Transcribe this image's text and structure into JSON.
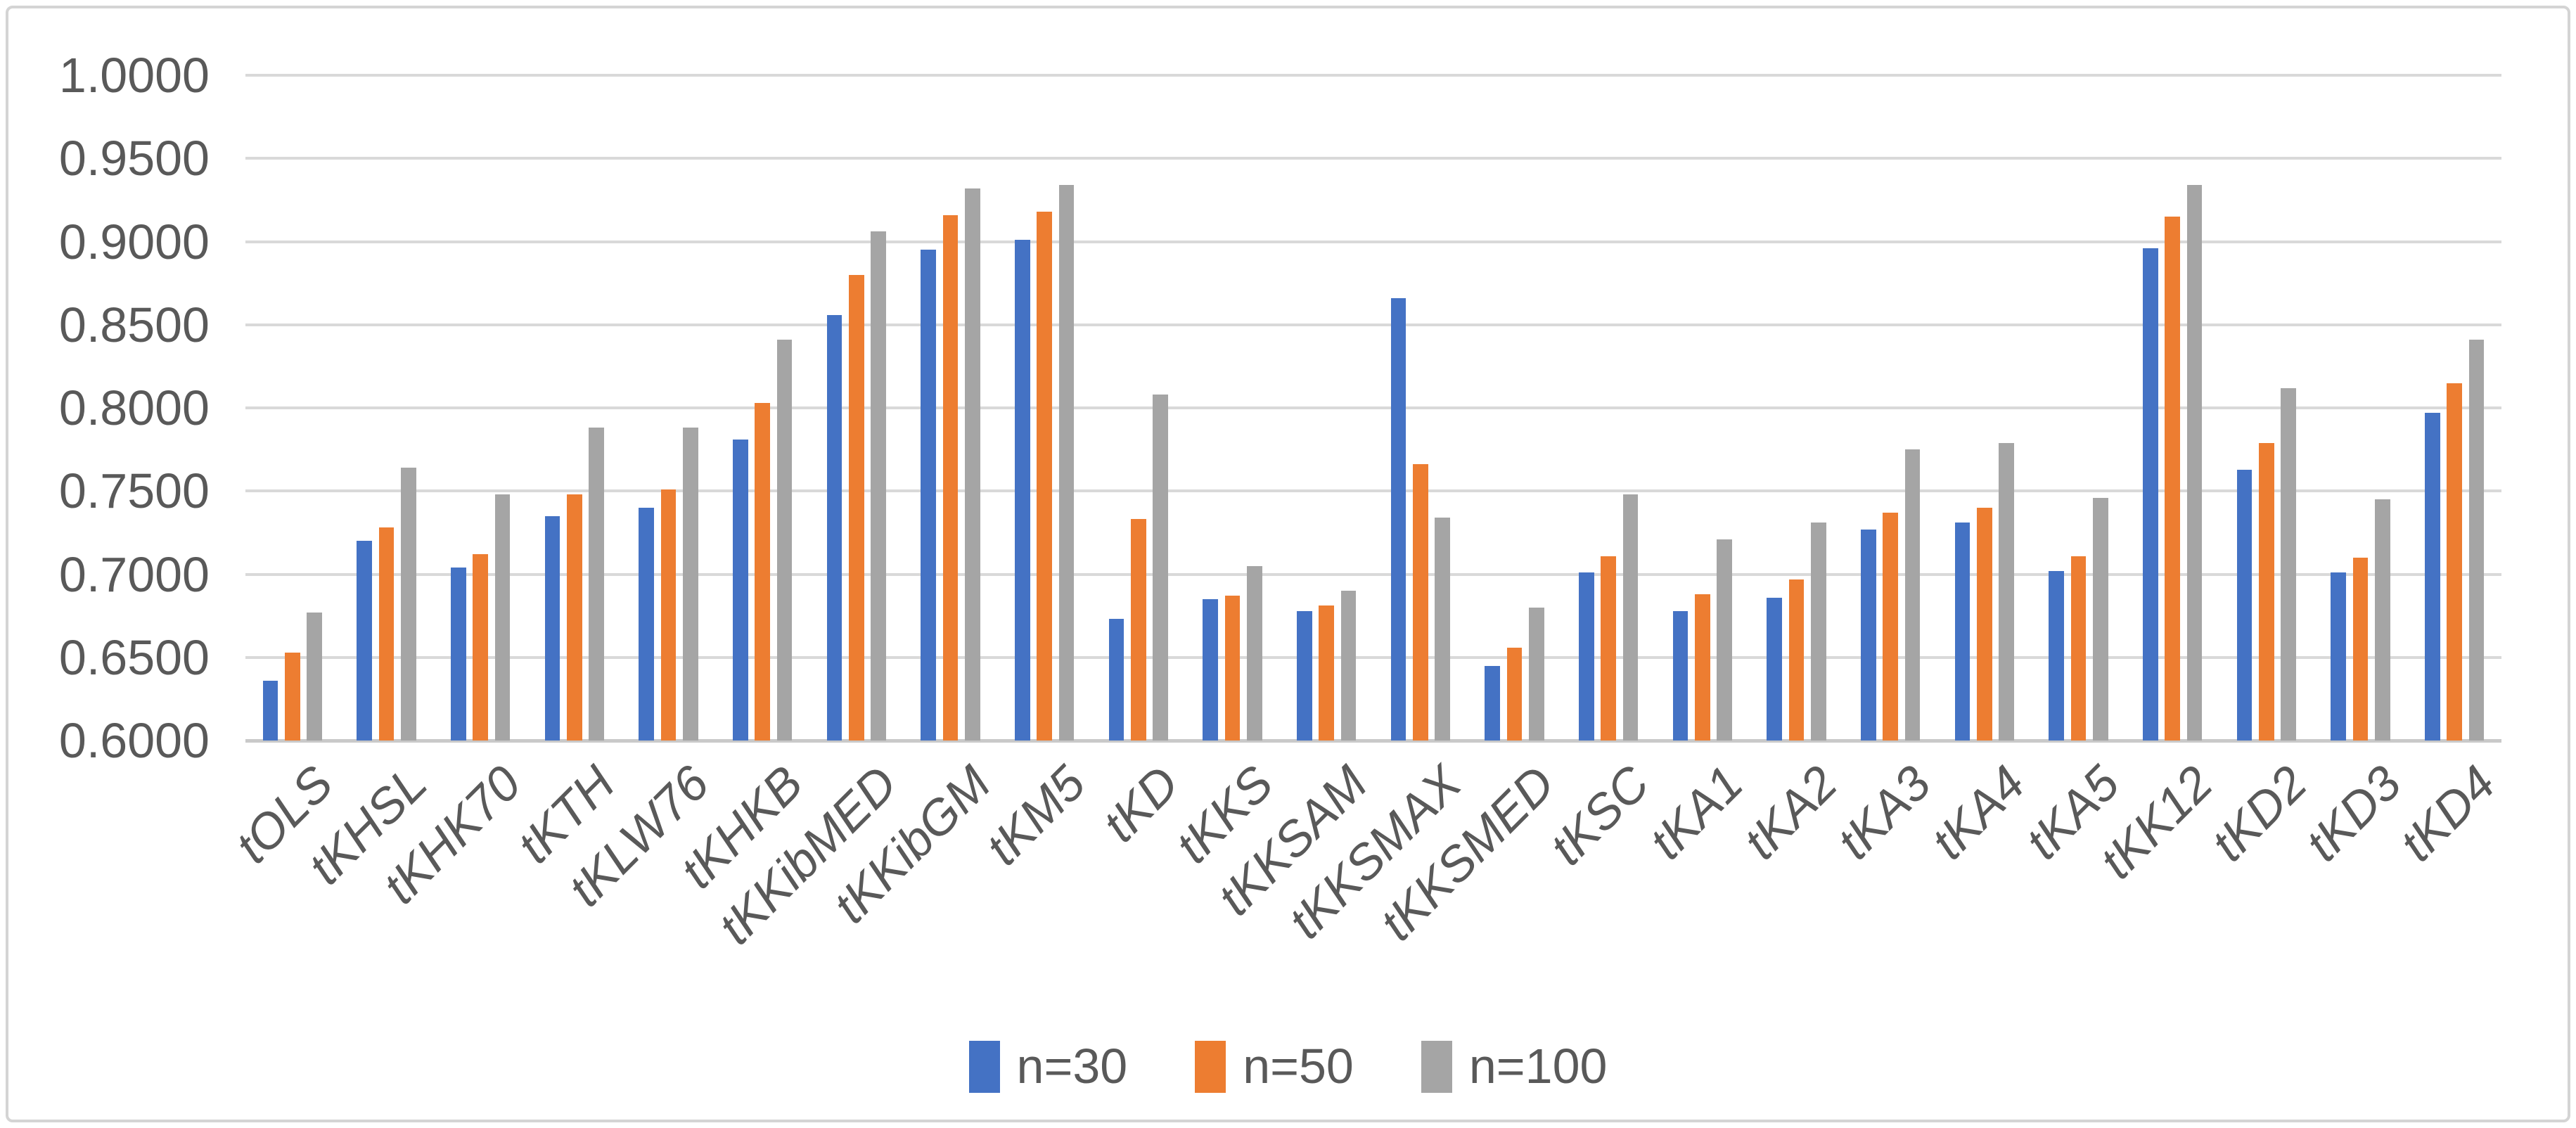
{
  "chart_data": {
    "type": "bar",
    "title": "",
    "xlabel": "",
    "ylabel": "",
    "categories": [
      "tOLS",
      "tKHSL",
      "tKHK70",
      "tKTH",
      "tKLW76",
      "tKHKB",
      "tKKibMED",
      "tKKibGM",
      "tKM5",
      "tKD",
      "tKKS",
      "tKKSAM",
      "tKKSMAX",
      "tKKSMED",
      "tKSC",
      "tKA1",
      "tKA2",
      "tKA3",
      "tKA4",
      "tKA5",
      "tKK12",
      "tKD2",
      "tKD3",
      "tKD4"
    ],
    "series": [
      {
        "name": "n=30",
        "color": "#4472C4",
        "values": [
          0.636,
          0.72,
          0.704,
          0.735,
          0.74,
          0.781,
          0.856,
          0.895,
          0.901,
          0.673,
          0.685,
          0.678,
          0.866,
          0.645,
          0.701,
          0.678,
          0.686,
          0.727,
          0.731,
          0.702,
          0.896,
          0.763,
          0.701,
          0.797
        ]
      },
      {
        "name": "n=50",
        "color": "#ED7D31",
        "values": [
          0.653,
          0.728,
          0.712,
          0.748,
          0.751,
          0.803,
          0.88,
          0.916,
          0.918,
          0.733,
          0.687,
          0.681,
          0.766,
          0.656,
          0.711,
          0.688,
          0.697,
          0.737,
          0.74,
          0.711,
          0.915,
          0.779,
          0.71,
          0.815
        ]
      },
      {
        "name": "n=100",
        "color": "#A5A5A5",
        "values": [
          0.677,
          0.764,
          0.748,
          0.788,
          0.788,
          0.841,
          0.906,
          0.932,
          0.934,
          0.808,
          0.705,
          0.69,
          0.734,
          0.68,
          0.748,
          0.721,
          0.731,
          0.775,
          0.779,
          0.746,
          0.934,
          0.812,
          0.745,
          0.841
        ]
      }
    ],
    "ylim": [
      0.6,
      1.0
    ],
    "ytick_step": 0.05,
    "ytick_labels": [
      "0.6000",
      "0.6500",
      "0.7000",
      "0.7500",
      "0.8000",
      "0.8500",
      "0.9000",
      "0.9500",
      "1.0000"
    ],
    "grid": "horizontal",
    "legend_position": "bottom-center"
  },
  "style_colors": {
    "gridline": "#d9d9d9",
    "axis_line": "#c9c9c9",
    "text": "#595959",
    "frame_border": "#d4d4d4",
    "background": "#ffffff"
  }
}
